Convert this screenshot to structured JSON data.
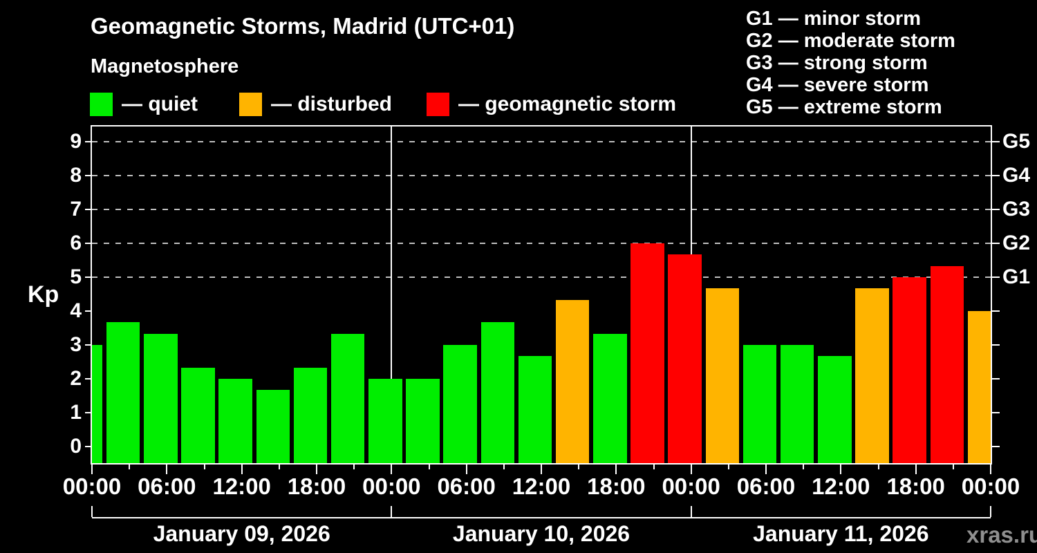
{
  "header": {
    "title": "Geomagnetic Storms, Madrid (UTC+01)",
    "subtitle": "Magnetosphere"
  },
  "legend": {
    "items": [
      {
        "key": "quiet",
        "label": "— quiet"
      },
      {
        "key": "disturbed",
        "label": "— disturbed"
      },
      {
        "key": "storm",
        "label": "— geomagnetic storm"
      }
    ]
  },
  "g_scale": {
    "items": [
      {
        "label": "G1 — minor storm"
      },
      {
        "label": "G2 — moderate storm"
      },
      {
        "label": "G3 — strong storm"
      },
      {
        "label": "G4 — severe storm"
      },
      {
        "label": "G5 — extreme storm"
      }
    ]
  },
  "colors": {
    "quiet": "#00ee00",
    "disturbed": "#ffb400",
    "storm": "#ff0000",
    "grid": "#c0c0c0",
    "axis": "#ffffff",
    "watermark": "#8f8f8f"
  },
  "watermark": "xras.ru",
  "chart_data": {
    "type": "bar",
    "title": "Geomagnetic Storms, Madrid (UTC+01)",
    "subtitle": "Magnetosphere",
    "xlabel": "",
    "ylabel": "Kp",
    "ylim": [
      -0.48,
      9.44
    ],
    "yticks": [
      0,
      1,
      2,
      3,
      4,
      5,
      6,
      7,
      8,
      9
    ],
    "grid_levels": [
      5,
      6,
      7,
      8,
      9
    ],
    "grid_style": "dashed",
    "legend_position": "top",
    "right_axis_labels": [
      {
        "kp": 5,
        "label": "G1"
      },
      {
        "kp": 6,
        "label": "G2"
      },
      {
        "kp": 7,
        "label": "G3"
      },
      {
        "kp": 8,
        "label": "G4"
      },
      {
        "kp": 9,
        "label": "G5"
      }
    ],
    "x_span_hours": 72,
    "bar_interval_hours": 3,
    "x_major_tick_every_hours": 6,
    "x_tick_labels": [
      "00:00",
      "06:00",
      "12:00",
      "18:00",
      "00:00",
      "06:00",
      "12:00",
      "18:00",
      "00:00",
      "06:00",
      "12:00",
      "18:00",
      "00:00"
    ],
    "days": [
      {
        "label": "January 09, 2026",
        "start_hour": 0,
        "end_hour": 24
      },
      {
        "label": "January 10, 2026",
        "start_hour": 24,
        "end_hour": 48
      },
      {
        "label": "January 11, 2026",
        "start_hour": 48,
        "end_hour": 72
      }
    ],
    "bars": [
      {
        "hour": 0,
        "kp": 3.0,
        "status": "quiet"
      },
      {
        "hour": 3,
        "kp": 3.67,
        "status": "quiet"
      },
      {
        "hour": 6,
        "kp": 3.33,
        "status": "quiet"
      },
      {
        "hour": 9,
        "kp": 2.33,
        "status": "quiet"
      },
      {
        "hour": 12,
        "kp": 2.0,
        "status": "quiet"
      },
      {
        "hour": 15,
        "kp": 1.67,
        "status": "quiet"
      },
      {
        "hour": 18,
        "kp": 2.33,
        "status": "quiet"
      },
      {
        "hour": 21,
        "kp": 3.33,
        "status": "quiet"
      },
      {
        "hour": 24,
        "kp": 2.0,
        "status": "quiet"
      },
      {
        "hour": 27,
        "kp": 2.0,
        "status": "quiet"
      },
      {
        "hour": 30,
        "kp": 3.0,
        "status": "quiet"
      },
      {
        "hour": 33,
        "kp": 3.67,
        "status": "quiet"
      },
      {
        "hour": 36,
        "kp": 2.67,
        "status": "quiet"
      },
      {
        "hour": 39,
        "kp": 4.33,
        "status": "disturbed"
      },
      {
        "hour": 42,
        "kp": 3.33,
        "status": "quiet"
      },
      {
        "hour": 45,
        "kp": 6.0,
        "status": "storm"
      },
      {
        "hour": 48,
        "kp": 5.67,
        "status": "storm"
      },
      {
        "hour": 51,
        "kp": 4.67,
        "status": "disturbed"
      },
      {
        "hour": 54,
        "kp": 3.0,
        "status": "quiet"
      },
      {
        "hour": 57,
        "kp": 3.0,
        "status": "quiet"
      },
      {
        "hour": 60,
        "kp": 2.67,
        "status": "quiet"
      },
      {
        "hour": 63,
        "kp": 4.67,
        "status": "disturbed"
      },
      {
        "hour": 66,
        "kp": 5.0,
        "status": "storm"
      },
      {
        "hour": 69,
        "kp": 5.33,
        "status": "storm"
      },
      {
        "hour": 72,
        "kp": 4.0,
        "status": "disturbed"
      }
    ]
  }
}
